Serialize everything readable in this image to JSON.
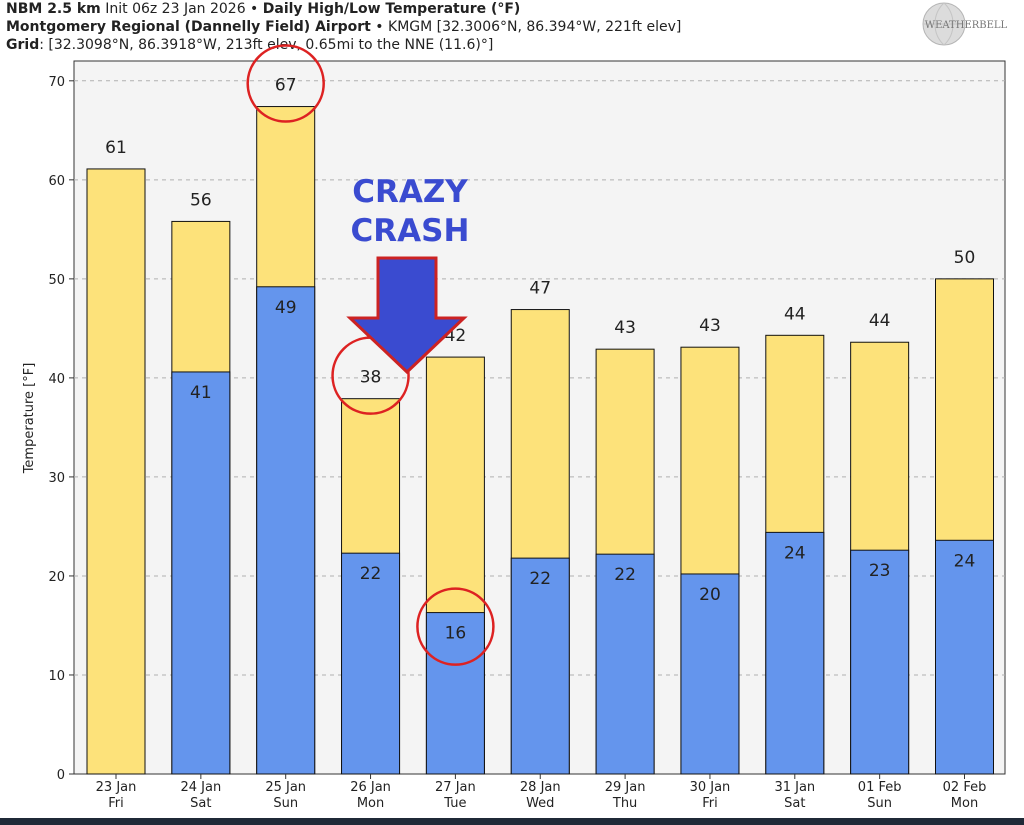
{
  "header": {
    "line1_bold": "NBM 2.5 km",
    "line1_a": " Init 06z 23 Jan 2026 • ",
    "line1_bold2": "Daily High/Low Temperature (°F)",
    "line2_bold": "Montgomery Regional (Dannelly Field) Airport",
    "line2_rest": " • KMGM [32.3006°N, 86.394°W, 221ft elev]",
    "line3_bold": "Grid",
    "line3_rest": ": [32.3098°N, 86.3918°W, 213ft elev, 0.65mi to the NNE (11.6)°]"
  },
  "logo": {
    "text": "WEATHERBELL",
    "icon": "globe-logo-icon"
  },
  "annotation": {
    "line1": "CRAZY",
    "line2": "CRASH",
    "color": "#3a4bd0",
    "arrow_color": "#3a4bd0",
    "arrow_outline": "#cc2222"
  },
  "colors": {
    "high": "#fde27a",
    "low": "#6495ed",
    "plot_bg": "#f4f4f4",
    "circle": "#dd2222"
  },
  "chart_data": {
    "type": "bar",
    "ylabel": "Temperature [°F]",
    "ylim": [
      0,
      72
    ],
    "yticks": [
      0,
      10,
      20,
      30,
      40,
      50,
      60,
      70
    ],
    "grid": true,
    "categories": [
      [
        "23 Jan",
        "Fri"
      ],
      [
        "24 Jan",
        "Sat"
      ],
      [
        "25 Jan",
        "Sun"
      ],
      [
        "26 Jan",
        "Mon"
      ],
      [
        "27 Jan",
        "Tue"
      ],
      [
        "28 Jan",
        "Wed"
      ],
      [
        "29 Jan",
        "Thu"
      ],
      [
        "30 Jan",
        "Fri"
      ],
      [
        "31 Jan",
        "Sat"
      ],
      [
        "01 Feb",
        "Sun"
      ],
      [
        "02 Feb",
        "Mon"
      ]
    ],
    "series": [
      {
        "values": [
          61.1,
          55.8,
          67.4,
          37.9,
          42.1,
          46.9,
          42.9,
          43.1,
          44.3,
          43.6,
          50.0
        ],
        "labels": [
          "61",
          "56",
          "67",
          "38",
          "42",
          "47",
          "43",
          "43",
          "44",
          "44",
          "50"
        ]
      },
      {
        "values": [
          null,
          40.6,
          49.2,
          22.3,
          16.3,
          21.8,
          22.2,
          20.2,
          24.4,
          22.6,
          23.6
        ],
        "labels": [
          "",
          "41",
          "49",
          "22",
          "16",
          "22",
          "22",
          "20",
          "24",
          "23",
          "24"
        ]
      }
    ],
    "circled": [
      {
        "series": 0,
        "index": 2
      },
      {
        "series": 0,
        "index": 3
      },
      {
        "series": 1,
        "index": 4
      }
    ]
  }
}
